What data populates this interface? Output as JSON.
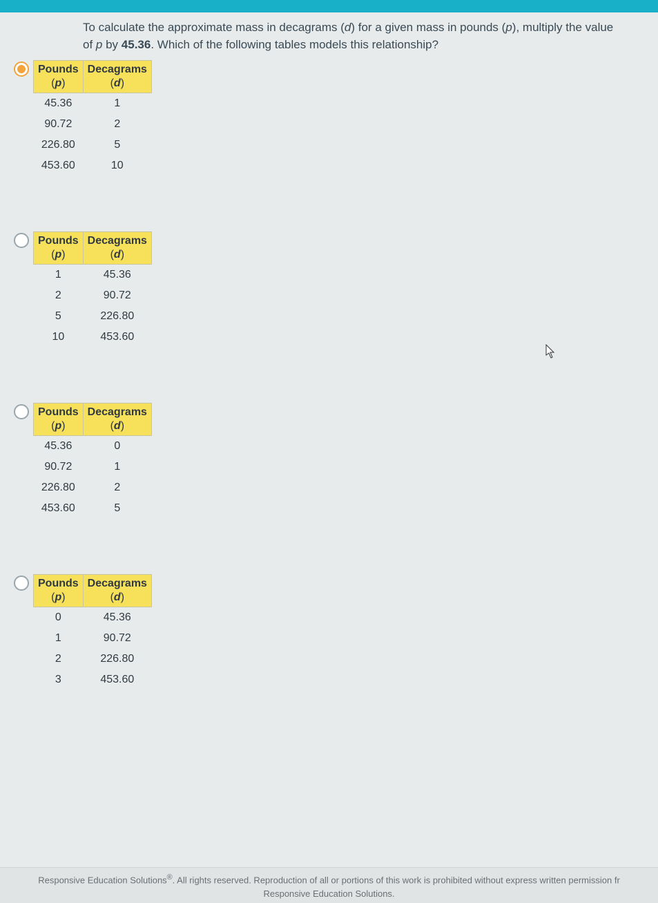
{
  "colors": {
    "topbar": "#17b0c8",
    "page_bg": "#e8ebec",
    "header_bg": "#f7e05a",
    "text": "#3a4a55",
    "radio_selected": "#f2a33c",
    "radio_unselected_border": "#9aa6ad",
    "footer_text": "#6a6f73"
  },
  "question": {
    "line1_pre": "To calculate the approximate mass in decagrams (",
    "d": "d",
    "line1_mid": ") for a given mass in pounds (",
    "p": "p",
    "line1_post": "), multiply",
    "line2_pre": "the value of ",
    "line2_mid": " by ",
    "bold_num": "45.36",
    "line2_post": ". Which of the following tables models this relationship?"
  },
  "headers": {
    "col1": "Pounds",
    "col2": "Decagrams",
    "sub1_open": "(",
    "sub1_var": "p",
    "sub1_close": ")",
    "sub2_open": "(",
    "sub2_var": "d",
    "sub2_close": ")"
  },
  "options": [
    {
      "selected": true,
      "rows": [
        {
          "p": "45.36",
          "d": "1"
        },
        {
          "p": "90.72",
          "d": "2"
        },
        {
          "p": "226.80",
          "d": "5"
        },
        {
          "p": "453.60",
          "d": "10"
        }
      ]
    },
    {
      "selected": false,
      "rows": [
        {
          "p": "1",
          "d": "45.36"
        },
        {
          "p": "2",
          "d": "90.72"
        },
        {
          "p": "5",
          "d": "226.80"
        },
        {
          "p": "10",
          "d": "453.60"
        }
      ]
    },
    {
      "selected": false,
      "rows": [
        {
          "p": "45.36",
          "d": "0"
        },
        {
          "p": "90.72",
          "d": "1"
        },
        {
          "p": "226.80",
          "d": "2"
        },
        {
          "p": "453.60",
          "d": "5"
        }
      ]
    },
    {
      "selected": false,
      "rows": [
        {
          "p": "0",
          "d": "45.36"
        },
        {
          "p": "1",
          "d": "90.72"
        },
        {
          "p": "2",
          "d": "226.80"
        },
        {
          "p": "3",
          "d": "453.60"
        }
      ]
    }
  ],
  "footer": {
    "line1_pre": "Responsive Education Solutions",
    "line1_sup": "®",
    "line1_post": ". All rights reserved. Reproduction of all or portions of this work is prohibited without express written permission fr",
    "line2": "Responsive Education Solutions."
  }
}
